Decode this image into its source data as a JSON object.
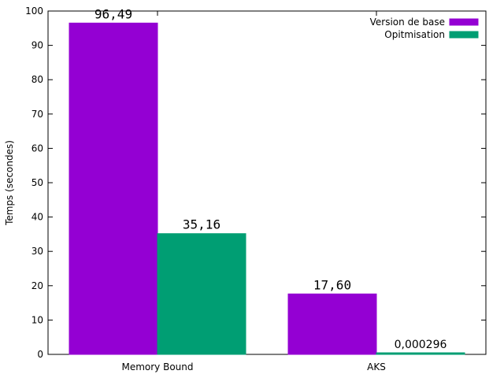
{
  "chart_data": {
    "type": "bar",
    "categories": [
      "Memory Bound",
      "AKS"
    ],
    "series": [
      {
        "name": "Version de base",
        "values": [
          96.49,
          17.6
        ],
        "labels": [
          "96,49",
          "17,60"
        ],
        "color": "#9400d3"
      },
      {
        "name": "Opitmisation",
        "values": [
          35.16,
          0.000296
        ],
        "labels": [
          "35,16",
          "0,000296"
        ],
        "color": "#009e73"
      }
    ],
    "ylabel": "Temps (secondes)",
    "ylim": [
      0,
      100
    ],
    "yticks": [
      0,
      10,
      20,
      30,
      40,
      50,
      60,
      70,
      80,
      90,
      100
    ],
    "grid": false,
    "legend_position": "top-right"
  }
}
